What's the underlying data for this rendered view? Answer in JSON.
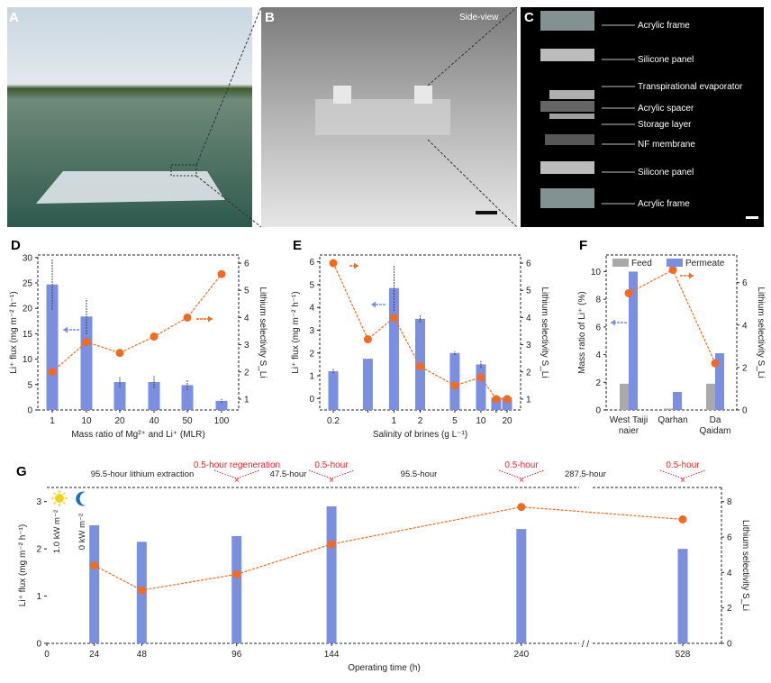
{
  "panels": {
    "A": {
      "label": "A"
    },
    "B": {
      "label": "B",
      "caption": "Side-view"
    },
    "C": {
      "label": "C",
      "parts": [
        "Acrylic frame",
        "Silicone panel",
        "Transpirational evaporator",
        "Acrylic spacer",
        "Storage layer",
        "NF membrane",
        "Silicone panel",
        "Acrylic frame"
      ]
    }
  },
  "colors": {
    "bar": "#7b8fe0",
    "line": "#f26b21",
    "feed": "#a9a9a9",
    "arrow_left": "#7b8fe0",
    "annotation": "#e8202a"
  },
  "chart_data": [
    {
      "panel": "D",
      "type": "bar",
      "categories": [
        "1",
        "10",
        "20",
        "40",
        "50",
        "100"
      ],
      "xlabel": "Mass ratio of Mg²⁺ and Li⁺ (MLR)",
      "ylabel": "Li⁺ flux (mg m⁻² h⁻¹)",
      "ylim": [
        0,
        30
      ],
      "yticks": [
        0,
        5,
        10,
        15,
        20,
        25,
        30
      ],
      "y2label": "Lithium selectivity S_Li",
      "y2lim": [
        1,
        6
      ],
      "y2ticks": [
        1,
        2,
        3,
        4,
        5,
        6
      ],
      "series": [
        {
          "kind": "bar",
          "axis": "left",
          "values": [
            24.7,
            18.4,
            5.5,
            5.5,
            4.9,
            1.8
          ],
          "errors": [
            5,
            3.5,
            1,
            1.2,
            1,
            0.4
          ]
        },
        {
          "kind": "line",
          "axis": "right",
          "values": [
            2.0,
            3.1,
            2.7,
            3.3,
            4.0,
            5.6
          ],
          "errors": [
            0,
            0,
            0.3,
            1.3,
            0,
            0
          ]
        }
      ]
    },
    {
      "panel": "E",
      "type": "bar",
      "xscale": "log",
      "x": [
        0.2,
        0.5,
        1,
        2,
        5,
        10,
        15,
        20
      ],
      "xticklabels": [
        "0.2",
        "",
        "1",
        "2",
        "5",
        "10",
        "",
        "20"
      ],
      "xlabel": "Salinity of brines (g L⁻¹)",
      "ylabel": "Li⁺ flux (mg m⁻² h⁻¹)",
      "ylim": [
        0,
        6
      ],
      "yticks": [
        0,
        1,
        2,
        3,
        4,
        5,
        6
      ],
      "y2label": "Lithium selectivity S_Li",
      "y2lim": [
        1,
        6
      ],
      "y2ticks": [
        1,
        2,
        3,
        4,
        5,
        6
      ],
      "series": [
        {
          "kind": "bar",
          "axis": "left",
          "values": [
            1.2,
            1.75,
            4.85,
            3.5,
            2.0,
            1.5,
            0.05,
            0.05
          ],
          "errors": [
            0.1,
            0,
            1.0,
            0.15,
            0.08,
            0.15,
            0,
            0
          ]
        },
        {
          "kind": "line",
          "axis": "right",
          "values": [
            6.0,
            3.2,
            4.0,
            2.2,
            1.5,
            1.8,
            1.0,
            1.0
          ]
        }
      ]
    },
    {
      "panel": "F",
      "type": "bar",
      "categories": [
        "West Taijinaier",
        "Qarhan",
        "Da Qaidam"
      ],
      "categorylabels": [
        [
          "West Taiji",
          "naier"
        ],
        [
          "Qarhan"
        ],
        [
          "Da",
          "Qaidam"
        ]
      ],
      "ylabel": "Mass ratio of Li⁺ (%)",
      "ylim": [
        0,
        10
      ],
      "yticks": [
        0,
        2,
        4,
        6,
        8,
        10
      ],
      "y2label": "Lithium selectivity S_Li",
      "y2lim": [
        0,
        7
      ],
      "y2ticks": [
        0,
        2,
        4,
        6
      ],
      "legend": "top",
      "legend_entries": [
        "Feed",
        "Permeate"
      ],
      "series": [
        {
          "name": "Feed",
          "kind": "bar",
          "axis": "left",
          "values": [
            1.9,
            0.1,
            1.9
          ]
        },
        {
          "name": "Permeate",
          "kind": "bar",
          "axis": "left",
          "values": [
            10.0,
            1.3,
            4.1
          ]
        },
        {
          "kind": "line",
          "axis": "right",
          "values": [
            5.5,
            6.6,
            2.2
          ]
        }
      ]
    },
    {
      "panel": "G",
      "type": "bar",
      "x": [
        24,
        48,
        96,
        144,
        240,
        528
      ],
      "xticks": [
        "0",
        "24",
        "48",
        "96",
        "144",
        "240",
        "528"
      ],
      "xlabel": "Operating time (h)",
      "ylabel": "Li⁺ flux (mg m⁻² h⁻¹)",
      "ylim": [
        0,
        3
      ],
      "yticks": [
        0,
        1,
        2,
        3
      ],
      "y2label": "Lithium selectivity S_Li",
      "y2lim": [
        0,
        8
      ],
      "y2ticks": [
        0,
        2,
        4,
        6,
        8
      ],
      "axis_break": true,
      "series": [
        {
          "kind": "bar",
          "axis": "left",
          "values": [
            2.5,
            2.15,
            2.27,
            2.9,
            2.42,
            2.0
          ]
        },
        {
          "kind": "line",
          "axis": "right",
          "values": [
            4.4,
            3.0,
            3.9,
            5.6,
            7.7,
            7.0
          ]
        }
      ],
      "annotations": {
        "phases": [
          "95.5-hour lithium extraction",
          "47.5-hour",
          "95.5-hour",
          "287.5-hour"
        ],
        "regen": [
          "0.5-hour regeneration",
          "0.5-hour",
          "0.5-hour",
          "0.5-hour"
        ],
        "day": "1.0 kW m⁻²",
        "night": "0 kW m⁻²"
      }
    }
  ]
}
